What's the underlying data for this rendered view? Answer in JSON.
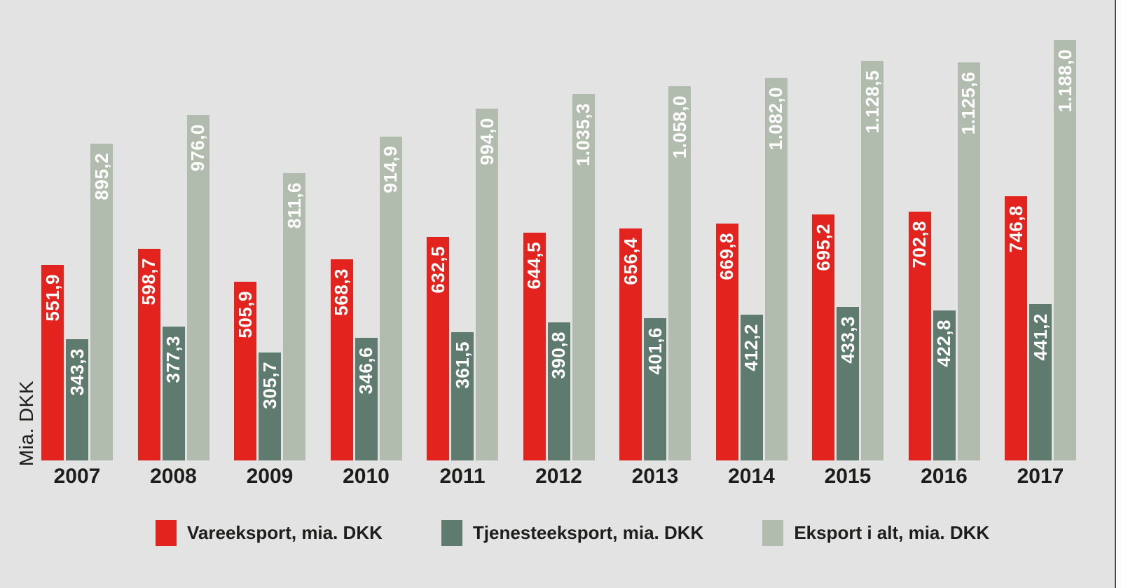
{
  "ylabel": "Mia. DKK",
  "colors": {
    "background": "#e4e3e4",
    "vareeksport": "#e2231e",
    "tjenesteeksport": "#5f7a6e",
    "eksport_i_alt": "#b2bcae",
    "axis_text": "#1d1d1b",
    "bar_value_text": "#ffffff",
    "right_edge_line": "#474747"
  },
  "legend": {
    "items": [
      {
        "label": "Vareeksport, mia. DKK",
        "color": "#e2231e"
      },
      {
        "label": "Tjenesteeksport, mia. DKK",
        "color": "#5f7a6e"
      },
      {
        "label": "Eksport i alt, mia. DKK",
        "color": "#b2bcae"
      }
    ]
  },
  "chart_data": {
    "type": "bar",
    "title": "",
    "xlabel": "",
    "ylabel": "Mia. DKK",
    "ylim": [
      0,
      1188
    ],
    "grid": false,
    "legend_position": "bottom",
    "value_label_style": "rotated-90-inside-bar-top",
    "categories": [
      "2007",
      "2008",
      "2009",
      "2010",
      "2011",
      "2012",
      "2013",
      "2014",
      "2015",
      "2016",
      "2017"
    ],
    "series": [
      {
        "name": "Vareeksport, mia. DKK",
        "key": "vareeksport",
        "color": "#e2231e",
        "values": [
          551.9,
          598.7,
          505.9,
          568.3,
          632.5,
          644.5,
          656.4,
          669.8,
          695.2,
          702.8,
          746.8
        ],
        "labels": [
          "551,9",
          "598,7",
          "505,9",
          "568,3",
          "632,5",
          "644,5",
          "656,4",
          "669,8",
          "695,2",
          "702,8",
          "746,8"
        ]
      },
      {
        "name": "Tjenesteeksport, mia. DKK",
        "key": "tjenesteeksport",
        "color": "#5f7a6e",
        "values": [
          343.3,
          377.3,
          305.7,
          346.6,
          361.5,
          390.8,
          401.6,
          412.2,
          433.3,
          422.8,
          441.2
        ],
        "labels": [
          "343,3",
          "377,3",
          "305,7",
          "346,6",
          "361,5",
          "390,8",
          "401,6",
          "412,2",
          "433,3",
          "422,8",
          "441,2"
        ]
      },
      {
        "name": "Eksport i alt, mia. DKK",
        "key": "eksport-i-alt",
        "color": "#b2bcae",
        "values": [
          895.2,
          976.0,
          811.6,
          914.9,
          994.0,
          1035.3,
          1058.0,
          1082.0,
          1128.5,
          1125.6,
          1188.0
        ],
        "labels": [
          "895,2",
          "976,0",
          "811,6",
          "914,9",
          "994,0",
          "1.035,3",
          "1.058,0",
          "1.082,0",
          "1.128,5",
          "1.125,6",
          "1.188,0"
        ]
      }
    ]
  }
}
